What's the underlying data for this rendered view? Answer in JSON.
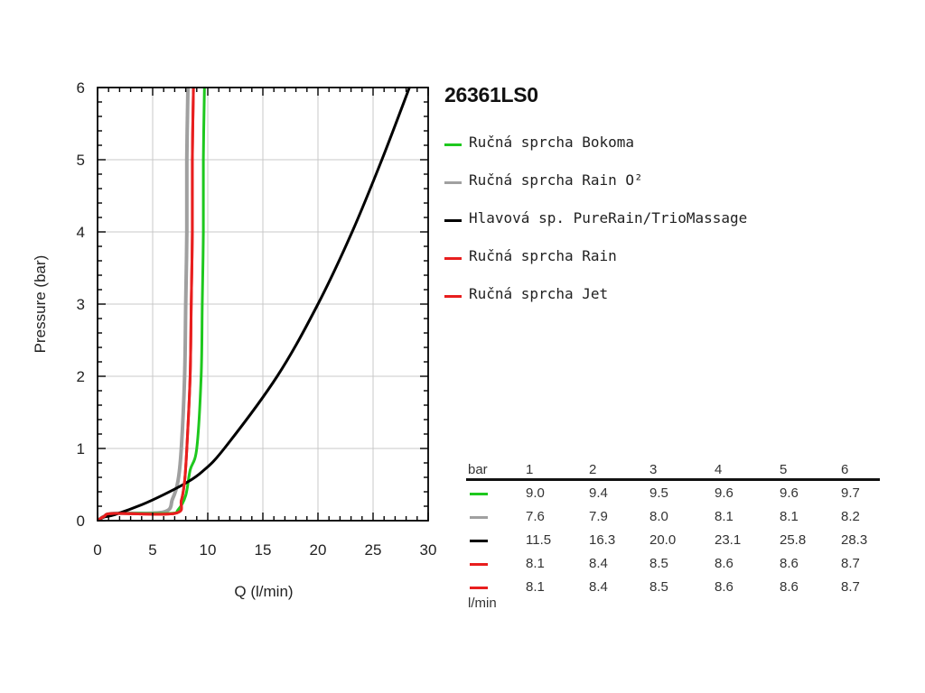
{
  "model": "26361LS0",
  "chart_data": {
    "type": "line",
    "xlabel": "Q (l/min)",
    "ylabel": "Pressure (bar)",
    "xlim": [
      0,
      30
    ],
    "ylim": [
      0,
      6
    ],
    "x_ticks": [
      "0",
      "5",
      "10",
      "15",
      "20",
      "25",
      "30"
    ],
    "y_ticks": [
      "0",
      "1",
      "2",
      "3",
      "4",
      "5",
      "6"
    ],
    "grid": true,
    "legend_position": "right",
    "series": [
      {
        "name": "Ručná sprcha Bokoma",
        "color": "#1ec81e",
        "width": 3,
        "points": [
          [
            0,
            0
          ],
          [
            0.6,
            0.06
          ],
          [
            1.5,
            0.1
          ],
          [
            6.5,
            0.1
          ],
          [
            7.3,
            0.15
          ],
          [
            8.0,
            0.35
          ],
          [
            8.4,
            0.7
          ],
          [
            9.0,
            1.0
          ],
          [
            9.4,
            2.0
          ],
          [
            9.5,
            3.0
          ],
          [
            9.6,
            4.0
          ],
          [
            9.6,
            5.0
          ],
          [
            9.7,
            6.0
          ]
        ]
      },
      {
        "name": "Ručná sprcha Rain O²",
        "color": "#a0a0a0",
        "width": 4,
        "points": [
          [
            0,
            0
          ],
          [
            0.6,
            0.06
          ],
          [
            1.5,
            0.1
          ],
          [
            6.0,
            0.12
          ],
          [
            6.8,
            0.3
          ],
          [
            7.3,
            0.55
          ],
          [
            7.6,
            1.0
          ],
          [
            7.9,
            2.0
          ],
          [
            8.0,
            3.0
          ],
          [
            8.1,
            4.0
          ],
          [
            8.1,
            5.0
          ],
          [
            8.2,
            6.0
          ]
        ]
      },
      {
        "name": "Hlavová sp. PureRain/TrioMassage",
        "color": "#000000",
        "width": 3,
        "points": [
          [
            0,
            0
          ],
          [
            0.6,
            0.05
          ],
          [
            1.5,
            0.08
          ],
          [
            4.0,
            0.22
          ],
          [
            6.0,
            0.36
          ],
          [
            8.0,
            0.52
          ],
          [
            9.5,
            0.68
          ],
          [
            11.5,
            1.0
          ],
          [
            16.3,
            2.0
          ],
          [
            20.0,
            3.0
          ],
          [
            23.1,
            4.0
          ],
          [
            25.8,
            5.0
          ],
          [
            28.3,
            6.0
          ]
        ]
      },
      {
        "name": "Ručná sprcha Rain",
        "color": "#e81e1e",
        "width": 3,
        "points": [
          [
            0,
            0
          ],
          [
            0.6,
            0.06
          ],
          [
            1.5,
            0.1
          ],
          [
            7.0,
            0.1
          ],
          [
            7.6,
            0.28
          ],
          [
            7.9,
            0.55
          ],
          [
            8.1,
            1.0
          ],
          [
            8.4,
            2.0
          ],
          [
            8.5,
            3.0
          ],
          [
            8.6,
            4.0
          ],
          [
            8.6,
            5.0
          ],
          [
            8.7,
            6.0
          ]
        ]
      },
      {
        "name": "Ručná sprcha Jet",
        "color": "#e81e1e",
        "width": 3,
        "points": [
          [
            0,
            0
          ],
          [
            0.6,
            0.06
          ],
          [
            1.5,
            0.1
          ],
          [
            7.0,
            0.1
          ],
          [
            7.6,
            0.28
          ],
          [
            7.9,
            0.55
          ],
          [
            8.1,
            1.0
          ],
          [
            8.4,
            2.0
          ],
          [
            8.5,
            3.0
          ],
          [
            8.6,
            4.0
          ],
          [
            8.6,
            5.0
          ],
          [
            8.7,
            6.0
          ]
        ]
      }
    ]
  },
  "flow_table": {
    "pressure_unit": "bar",
    "flow_unit": "l/min",
    "pressures": [
      "1",
      "2",
      "3",
      "4",
      "5",
      "6"
    ],
    "rows": [
      {
        "color": "#1ec81e",
        "values": [
          "9.0",
          "9.4",
          "9.5",
          "9.6",
          "9.6",
          "9.7"
        ]
      },
      {
        "color": "#a0a0a0",
        "values": [
          "7.6",
          "7.9",
          "8.0",
          "8.1",
          "8.1",
          "8.2"
        ]
      },
      {
        "color": "#000000",
        "values": [
          "11.5",
          "16.3",
          "20.0",
          "23.1",
          "25.8",
          "28.3"
        ]
      },
      {
        "color": "#e81e1e",
        "values": [
          "8.1",
          "8.4",
          "8.5",
          "8.6",
          "8.6",
          "8.7"
        ]
      },
      {
        "color": "#e81e1e",
        "values": [
          "8.1",
          "8.4",
          "8.5",
          "8.6",
          "8.6",
          "8.7"
        ]
      }
    ]
  }
}
